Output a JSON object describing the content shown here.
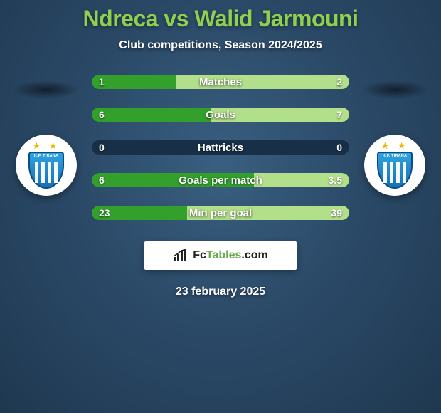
{
  "title": "Ndreca vs Walid Jarmouni",
  "subtitle": "Club competitions, Season 2024/2025",
  "date": "23 february 2025",
  "attribution": {
    "brand_prefix": "Fc",
    "brand_suffix": "Tables",
    "brand_tld": ".com"
  },
  "colors": {
    "title": "#8fd14f",
    "left_bar": "#33a02c",
    "right_bar": "#b2df8a",
    "track": "#173048",
    "bg_inner": "#3a5f80",
    "bg_outer": "#1f3850"
  },
  "badge": {
    "label": "K.F. TIRANA"
  },
  "stats": [
    {
      "label": "Matches",
      "left_val": "1",
      "right_val": "2",
      "left_pct": 33,
      "right_pct": 67
    },
    {
      "label": "Goals",
      "left_val": "6",
      "right_val": "7",
      "left_pct": 46,
      "right_pct": 54
    },
    {
      "label": "Hattricks",
      "left_val": "0",
      "right_val": "0",
      "left_pct": 0,
      "right_pct": 0
    },
    {
      "label": "Goals per match",
      "left_val": "6",
      "right_val": "3.5",
      "left_pct": 63,
      "right_pct": 37
    },
    {
      "label": "Min per goal",
      "left_val": "23",
      "right_val": "39",
      "left_pct": 37,
      "right_pct": 63
    }
  ]
}
